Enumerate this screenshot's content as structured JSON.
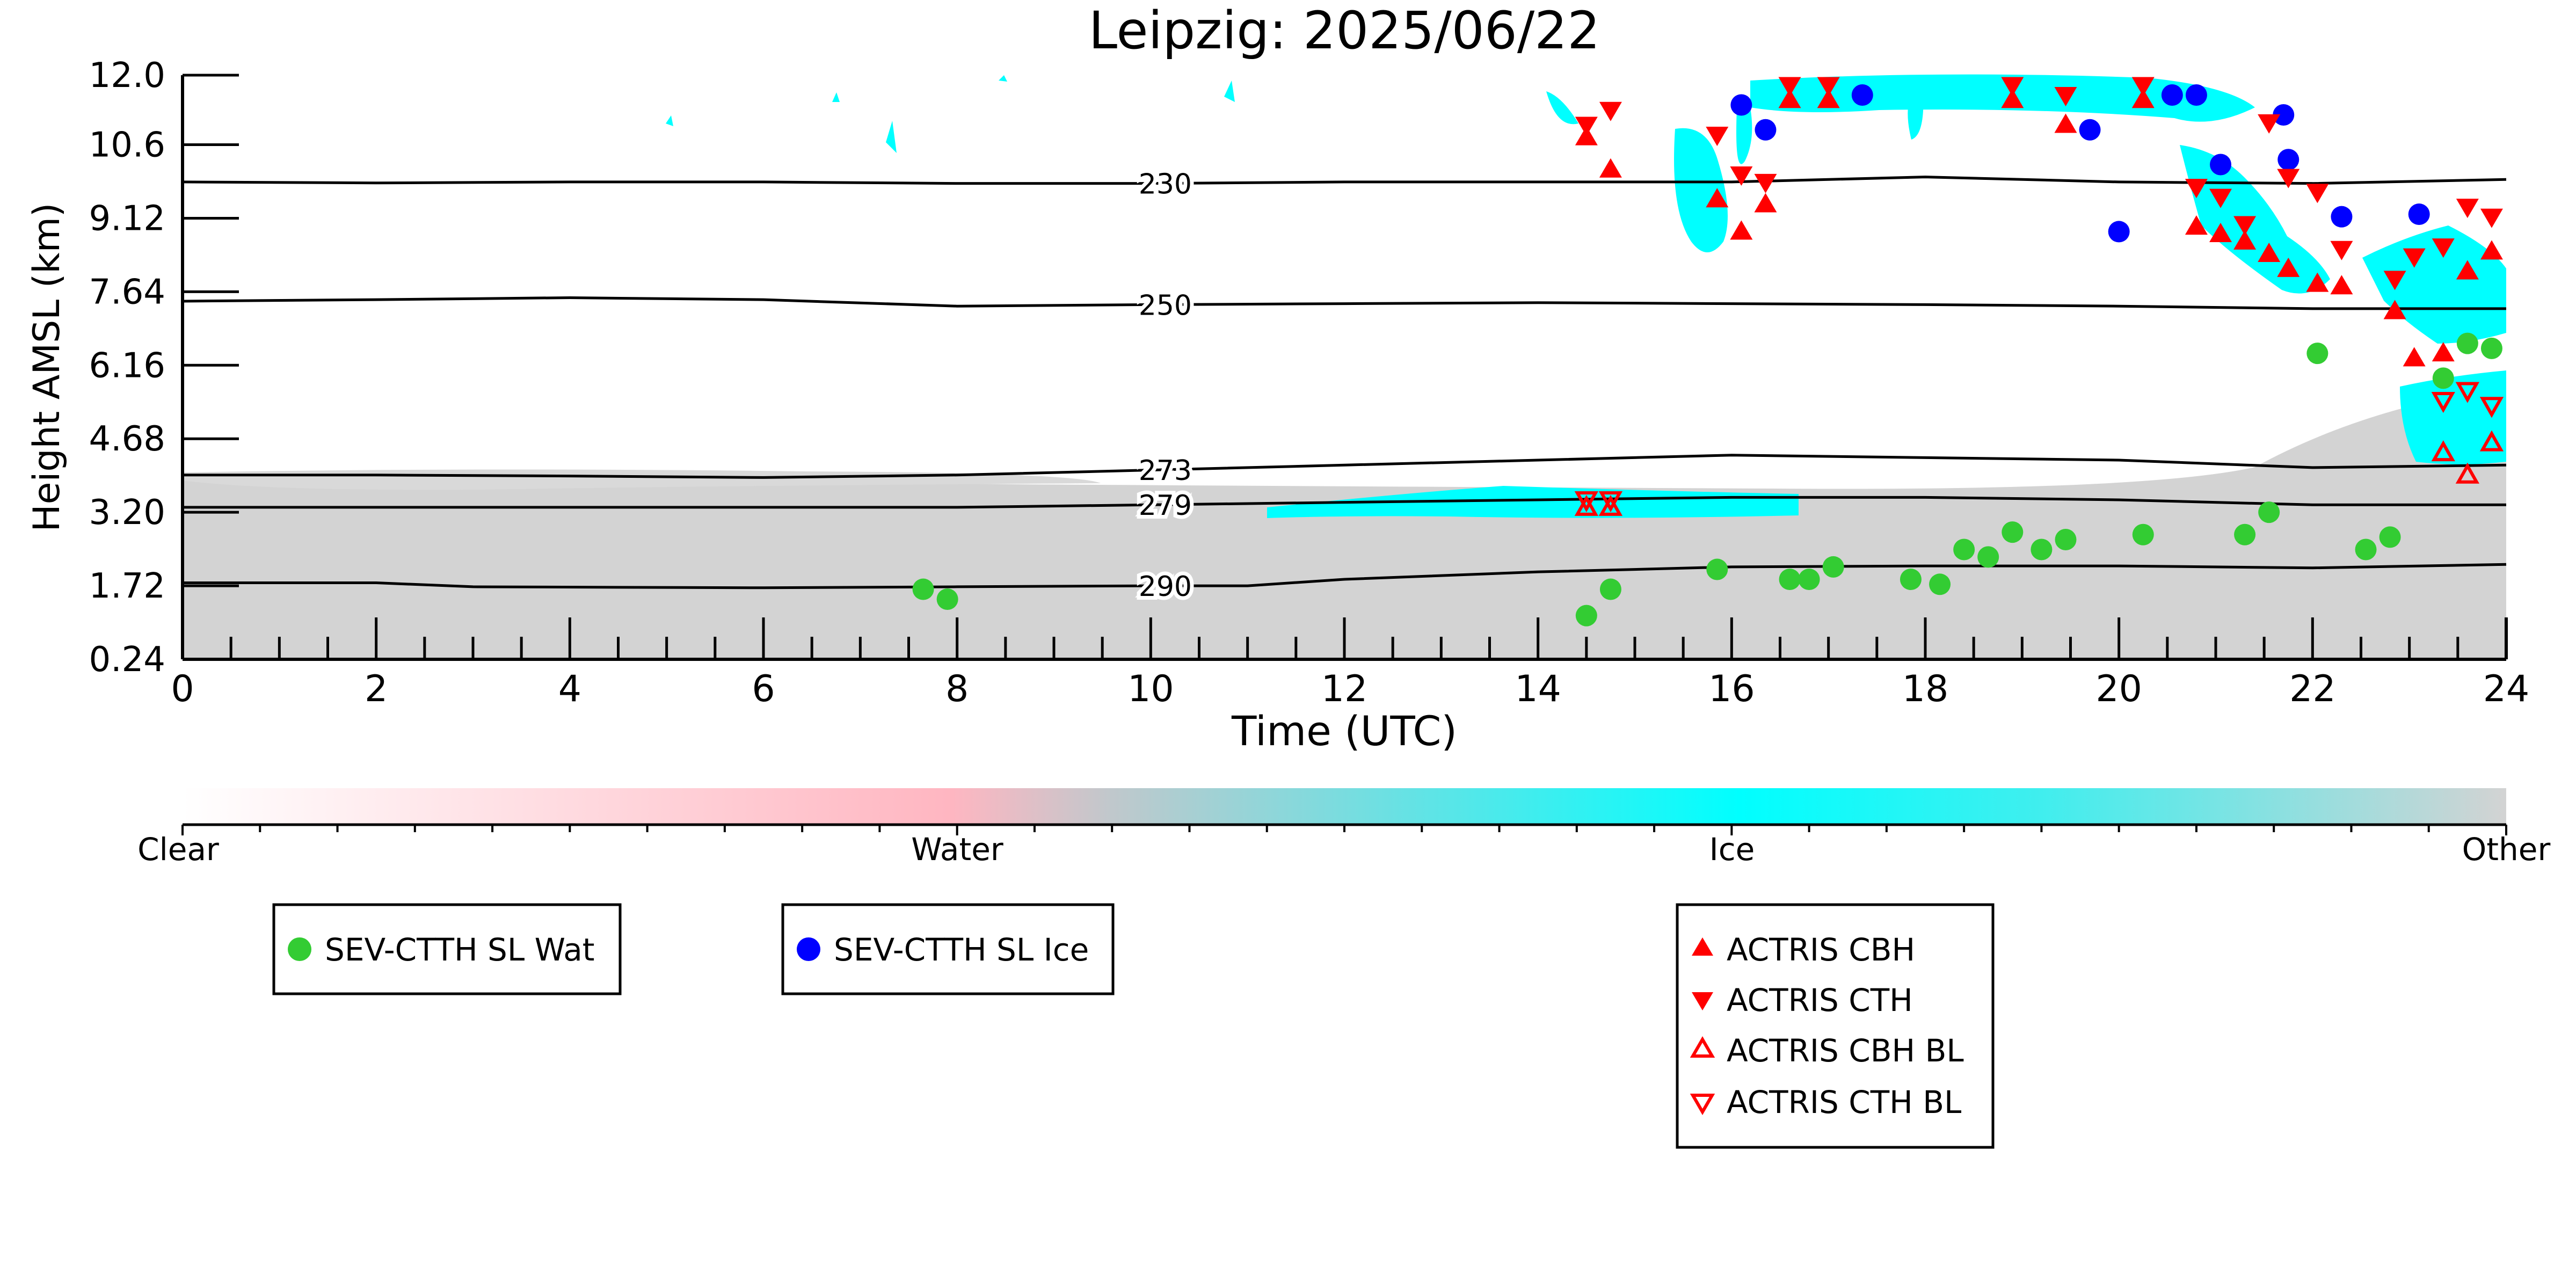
{
  "chart_data": {
    "type": "scatter",
    "title": "Leipzig: 2025/06/22",
    "xlabel": "Time (UTC)",
    "ylabel": "Height AMSL (km)",
    "xlim": [
      0,
      24
    ],
    "ylim": [
      0.24,
      12.0
    ],
    "xticks": [
      "0",
      "2",
      "4",
      "6",
      "8",
      "10",
      "12",
      "14",
      "16",
      "18",
      "20",
      "22",
      "24"
    ],
    "yticks": [
      "0.24",
      "1.72",
      "3.20",
      "4.68",
      "6.16",
      "7.64",
      "9.12",
      "10.6",
      "12.0"
    ],
    "colorbar": {
      "labels": [
        "Clear",
        "Water",
        "Ice",
        "Other"
      ],
      "colors": [
        "#ffffff",
        "#ffb6c1",
        "#00ffff",
        "#d3d3d3"
      ]
    },
    "background": {
      "clouds": [
        {
          "class": "Other",
          "color": "#d3d3d3",
          "description_label": ""
        },
        {
          "class": "Ice",
          "color": "#00ffff"
        }
      ]
    },
    "isotherms": [
      {
        "label": "230",
        "x": [
          0,
          2,
          4,
          6,
          8,
          10,
          12,
          14,
          16,
          18,
          20,
          22,
          24
        ],
        "y": [
          9.85,
          9.83,
          9.85,
          9.85,
          9.82,
          9.82,
          9.85,
          9.85,
          9.85,
          9.95,
          9.85,
          9.82,
          9.9
        ]
      },
      {
        "label": "250",
        "x": [
          0,
          2,
          4,
          6,
          8,
          10,
          12,
          14,
          16,
          18,
          20,
          22,
          24
        ],
        "y": [
          7.45,
          7.48,
          7.52,
          7.48,
          7.35,
          7.38,
          7.4,
          7.42,
          7.4,
          7.38,
          7.35,
          7.3,
          7.3
        ]
      },
      {
        "label": "273",
        "x": [
          0,
          2,
          4,
          6,
          8,
          10,
          12,
          14,
          16,
          18,
          20,
          22,
          24
        ],
        "y": [
          3.95,
          3.95,
          3.93,
          3.9,
          3.95,
          4.05,
          4.15,
          4.25,
          4.35,
          4.3,
          4.25,
          4.1,
          4.15
        ]
      },
      {
        "label": "279",
        "x": [
          0,
          2,
          4,
          6,
          8,
          10,
          12,
          14,
          16,
          18,
          20,
          22,
          24
        ],
        "y": [
          3.3,
          3.3,
          3.3,
          3.3,
          3.3,
          3.35,
          3.4,
          3.45,
          3.5,
          3.5,
          3.45,
          3.35,
          3.35
        ]
      },
      {
        "label": "290",
        "x": [
          0,
          2,
          3,
          6,
          8,
          10,
          11,
          12,
          14,
          16,
          18,
          20,
          22,
          24
        ],
        "y": [
          1.78,
          1.78,
          1.7,
          1.68,
          1.7,
          1.72,
          1.72,
          1.85,
          2.0,
          2.1,
          2.12,
          2.12,
          2.08,
          2.15
        ]
      }
    ],
    "series": [
      {
        "name": "SEV-CTTH SL Wat",
        "marker": "circle",
        "color": "#33cc33",
        "points": [
          [
            7.65,
            1.65
          ],
          [
            7.9,
            1.45
          ],
          [
            14.5,
            1.12
          ],
          [
            14.75,
            1.65
          ],
          [
            15.85,
            2.05
          ],
          [
            16.6,
            1.85
          ],
          [
            16.8,
            1.85
          ],
          [
            17.05,
            2.1
          ],
          [
            17.85,
            1.85
          ],
          [
            18.15,
            1.75
          ],
          [
            18.4,
            2.45
          ],
          [
            18.65,
            2.3
          ],
          [
            18.9,
            2.8
          ],
          [
            19.2,
            2.45
          ],
          [
            19.45,
            2.65
          ],
          [
            20.25,
            2.75
          ],
          [
            21.3,
            2.75
          ],
          [
            21.55,
            3.2
          ],
          [
            22.05,
            6.4
          ],
          [
            22.55,
            2.45
          ],
          [
            22.8,
            2.7
          ],
          [
            23.35,
            5.9
          ],
          [
            23.6,
            6.6
          ],
          [
            23.85,
            6.5
          ]
        ]
      },
      {
        "name": "SEV-CTTH SL Ice",
        "marker": "circle",
        "color": "#0000ff",
        "points": [
          [
            16.1,
            11.4
          ],
          [
            16.35,
            10.9
          ],
          [
            17.35,
            11.6
          ],
          [
            19.7,
            10.9
          ],
          [
            20.0,
            8.85
          ],
          [
            20.55,
            11.6
          ],
          [
            20.8,
            11.6
          ],
          [
            21.05,
            10.2
          ],
          [
            21.7,
            11.2
          ],
          [
            21.75,
            10.3
          ],
          [
            22.3,
            9.15
          ],
          [
            23.1,
            9.2
          ]
        ]
      },
      {
        "name": "ACTRIS CBH",
        "marker": "triangle-up",
        "color": "#ff0000",
        "points": [
          [
            14.5,
            10.75
          ],
          [
            14.75,
            10.1
          ],
          [
            15.85,
            9.5
          ],
          [
            16.1,
            8.85
          ],
          [
            16.35,
            9.4
          ],
          [
            16.6,
            11.5
          ],
          [
            17.0,
            11.5
          ],
          [
            18.9,
            11.5
          ],
          [
            19.45,
            11.0
          ],
          [
            20.25,
            11.5
          ],
          [
            20.8,
            8.95
          ],
          [
            21.05,
            8.8
          ],
          [
            21.3,
            8.65
          ],
          [
            21.55,
            8.4
          ],
          [
            21.75,
            8.1
          ],
          [
            22.05,
            7.8
          ],
          [
            22.3,
            7.75
          ],
          [
            22.85,
            7.25
          ],
          [
            23.05,
            6.3
          ],
          [
            23.35,
            6.4
          ],
          [
            23.6,
            8.05
          ],
          [
            23.85,
            8.45
          ]
        ]
      },
      {
        "name": "ACTRIS CTH",
        "marker": "triangle-down",
        "color": "#ff0000",
        "points": [
          [
            14.5,
            11.0
          ],
          [
            14.75,
            11.3
          ],
          [
            15.85,
            10.8
          ],
          [
            16.1,
            10.0
          ],
          [
            16.35,
            9.85
          ],
          [
            16.6,
            11.8
          ],
          [
            17.0,
            11.8
          ],
          [
            18.9,
            11.8
          ],
          [
            19.45,
            11.6
          ],
          [
            20.25,
            11.8
          ],
          [
            20.8,
            9.75
          ],
          [
            21.05,
            9.55
          ],
          [
            21.3,
            9.0
          ],
          [
            21.55,
            11.05
          ],
          [
            21.75,
            9.95
          ],
          [
            22.05,
            9.65
          ],
          [
            22.3,
            8.5
          ],
          [
            22.85,
            7.9
          ],
          [
            23.05,
            8.35
          ],
          [
            23.35,
            8.55
          ],
          [
            23.6,
            9.35
          ],
          [
            23.85,
            9.15
          ]
        ]
      },
      {
        "name": "ACTRIS CBH BL",
        "marker": "triangle-up-open",
        "color": "#ff0000",
        "points": [
          [
            14.5,
            3.3
          ],
          [
            14.75,
            3.3
          ],
          [
            23.35,
            4.4
          ],
          [
            23.6,
            3.95
          ],
          [
            23.85,
            4.6
          ]
        ]
      },
      {
        "name": "ACTRIS CTH BL",
        "marker": "triangle-down-open",
        "color": "#ff0000",
        "points": [
          [
            14.5,
            3.45
          ],
          [
            14.75,
            3.45
          ],
          [
            23.35,
            5.45
          ],
          [
            23.6,
            5.65
          ],
          [
            23.85,
            5.35
          ]
        ]
      }
    ],
    "legends": [
      {
        "entries": [
          "SEV-CTTH SL Wat"
        ]
      },
      {
        "entries": [
          "SEV-CTTH SL Ice"
        ]
      },
      {
        "entries": [
          "ACTRIS CBH",
          "ACTRIS CTH",
          "ACTRIS CBH BL",
          "ACTRIS CTH BL"
        ]
      }
    ]
  }
}
